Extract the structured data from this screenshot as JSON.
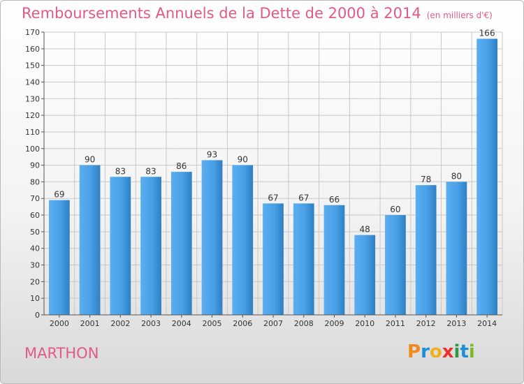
{
  "header": {
    "title": "Remboursements Annuels de la Dette de 2000 à 2014",
    "unit": "(en milliers d'€)"
  },
  "footer": {
    "place": "MARTHON"
  },
  "logo": {
    "text": "Proxiti",
    "letters": [
      "P",
      "r",
      "o",
      "x",
      "i",
      "t",
      "i"
    ],
    "colors": [
      "#f08a1c",
      "#1e8fd6",
      "#f0b01c",
      "#e8312e",
      "#2e9b44",
      "#1e8fd6",
      "#7bb929"
    ]
  },
  "colors": {
    "bar": "#3a8fd6",
    "bar_top": "#5aaef0",
    "axis": "#555555",
    "grid": "#c8c8c8",
    "accent": "#e05a84"
  },
  "chart_data": {
    "type": "bar",
    "title": "Remboursements Annuels de la Dette de 2000 à 2014",
    "xlabel": "",
    "ylabel": "",
    "ylim": [
      0,
      170
    ],
    "yticks": [
      0,
      10,
      20,
      30,
      40,
      50,
      60,
      70,
      80,
      90,
      100,
      110,
      120,
      130,
      140,
      150,
      160,
      170
    ],
    "categories": [
      "2000",
      "2001",
      "2002",
      "2003",
      "2004",
      "2005",
      "2006",
      "2007",
      "2008",
      "2009",
      "2010",
      "2011",
      "2012",
      "2013",
      "2014"
    ],
    "values": [
      69,
      90,
      83,
      83,
      86,
      93,
      90,
      67,
      67,
      66,
      48,
      60,
      78,
      80,
      166
    ],
    "grid": true
  }
}
